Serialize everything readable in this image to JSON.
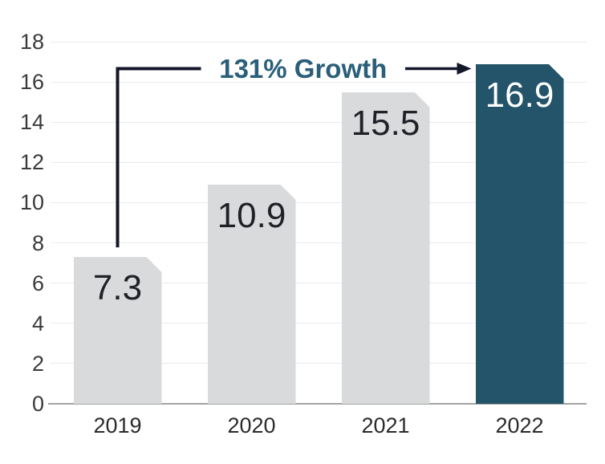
{
  "chart_data": {
    "type": "bar",
    "categories": [
      "2019",
      "2020",
      "2021",
      "2022"
    ],
    "values": [
      7.3,
      10.9,
      15.5,
      16.9
    ],
    "value_labels": [
      "7.3",
      "10.9",
      "15.5",
      "16.9"
    ],
    "bar_colors": [
      "#d9dadb",
      "#d9dadb",
      "#d9dadb",
      "#235469"
    ],
    "bar_label_colors": [
      "#1e2126",
      "#1e2126",
      "#1e2126",
      "#ffffff"
    ],
    "ylim": [
      0,
      18
    ],
    "ytick_step": 2,
    "ytick_labels": [
      "0",
      "2",
      "4",
      "6",
      "8",
      "10",
      "12",
      "14",
      "16",
      "18"
    ],
    "grid": true,
    "legend": "none",
    "title": "",
    "xlabel": "",
    "ylabel": "",
    "annotation": {
      "text": "131% Growth",
      "text_color": "#2a5f79",
      "line_color": "#14162a",
      "from_category": "2019",
      "to_category": "2022"
    },
    "colors": {
      "background": "#ffffff",
      "grid_line": "#ebebeb",
      "axis_line": "#a3a3a3",
      "tick_label": "#3b3b3b"
    }
  }
}
